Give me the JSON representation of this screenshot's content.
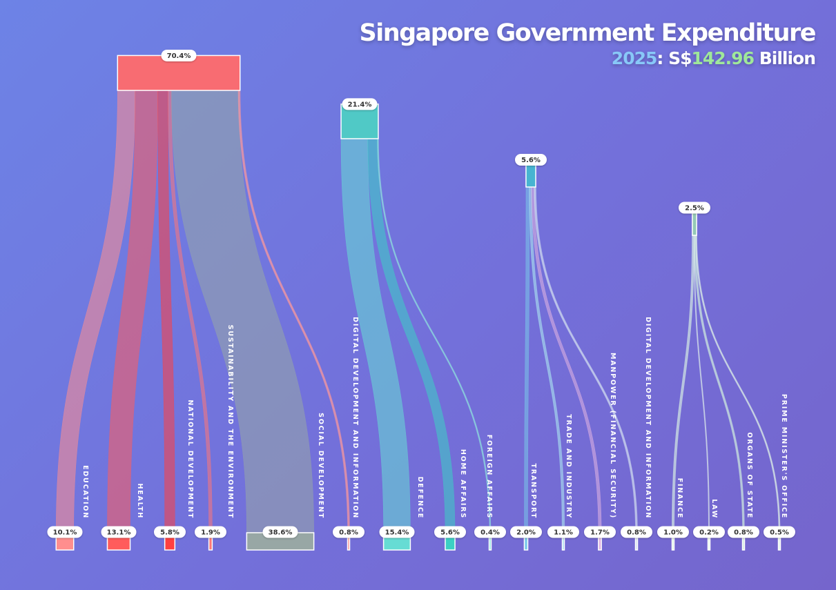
{
  "header": {
    "title": "Singapore Government Expenditure",
    "subtitle_year": "2025",
    "subtitle_mid": ": S$",
    "subtitle_amount": "142.96",
    "subtitle_unit": " Billion"
  },
  "colors": {
    "social": "#ff6b6b",
    "security": "#4ecdc4",
    "economic": "#45b7d1",
    "government": "#96ceb4"
  },
  "chart_data": {
    "type": "sankey",
    "total": "S$142.96 Billion",
    "year": "2025",
    "groups": [
      {
        "color": "#ff6b6b",
        "label": "70.4%",
        "value": 70.4,
        "children": [
          {
            "name": "EDUCATION",
            "label": "10.1%",
            "value": 10.1,
            "color": "#ff8e8e"
          },
          {
            "name": "HEALTH",
            "label": "13.1%",
            "value": 13.1,
            "color": "#ff5c5c"
          },
          {
            "name": "NATIONAL DEVELOPMENT",
            "label": "5.8%",
            "value": 5.8,
            "color": "#ff4040"
          },
          {
            "name": "SUSTAINABILITY AND THE ENVIRONMENT",
            "label": "1.9%",
            "value": 1.9,
            "color": "#ff7777"
          },
          {
            "name": "SOCIAL DEVELOPMENT",
            "label": "38.6%",
            "value": 38.6,
            "color": "#98a7a5"
          },
          {
            "name": "DIGITAL DEVELOPMENT AND INFORMATION",
            "label": "0.8%",
            "value": 0.8,
            "color": "#ff9a9a"
          }
        ]
      },
      {
        "color": "#4ecdc4",
        "label": "21.4%",
        "value": 21.4,
        "children": [
          {
            "name": "DEFENCE",
            "label": "15.4%",
            "value": 15.4,
            "color": "#66dcd4"
          },
          {
            "name": "HOME AFFAIRS",
            "label": "5.6%",
            "value": 5.6,
            "color": "#3ccfc4"
          },
          {
            "name": "FOREIGN AFFAIRS",
            "label": "0.4%",
            "value": 0.4,
            "color": "#8fe3de"
          }
        ]
      },
      {
        "color": "#45b7d1",
        "label": "5.6%",
        "value": 5.6,
        "children": [
          {
            "name": "TRANSPORT",
            "label": "2.0%",
            "value": 2.0,
            "color": "#7ac9ea"
          },
          {
            "name": "TRADE AND INDUSTRY",
            "label": "1.1%",
            "value": 1.1,
            "color": "#a8dcef"
          },
          {
            "name": "MANPOWER (FINANCIAL SECURITY)",
            "label": "1.7%",
            "value": 1.7,
            "color": "#e2b4e2"
          },
          {
            "name": "DIGITAL DEVELOPMENT AND INFORMATION",
            "label": "0.8%",
            "value": 0.8,
            "color": "#d4e0f0"
          }
        ]
      },
      {
        "color": "#96ceb4",
        "label": "2.5%",
        "value": 2.5,
        "children": [
          {
            "name": "FINANCE",
            "label": "1.0%",
            "value": 1.0,
            "color": "#d8f0e4"
          },
          {
            "name": "LAW",
            "label": "0.2%",
            "value": 0.2,
            "color": "#e4f4ec"
          },
          {
            "name": "ORGANS OF STATE",
            "label": "0.8%",
            "value": 0.8,
            "color": "#d0ecdf"
          },
          {
            "name": "PRIME MINISTER'S OFFICE",
            "label": "0.5%",
            "value": 0.5,
            "color": "#e0f2e8"
          }
        ]
      }
    ]
  }
}
